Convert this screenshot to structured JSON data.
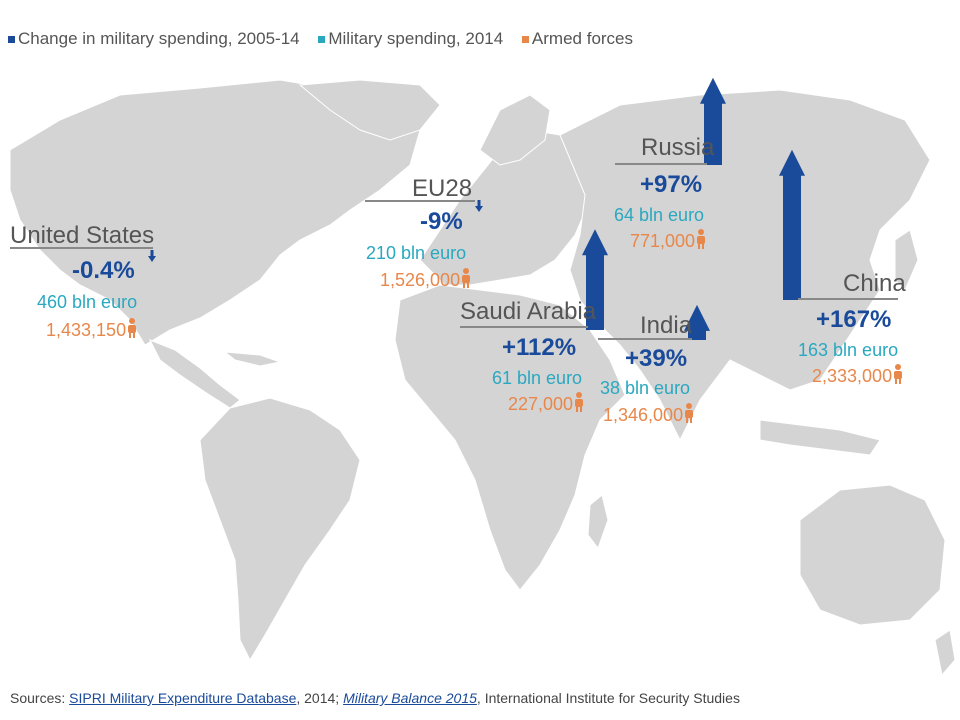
{
  "legend": {
    "items": [
      {
        "label": "Change in military spending, 2005-14",
        "color": "#1a4a9a"
      },
      {
        "label": "Military spending, 2014",
        "color": "#2aa8c0"
      },
      {
        "label": "Armed forces",
        "color": "#e8874a"
      }
    ]
  },
  "chart_data": {
    "type": "map",
    "series_labels": [
      "Change in military spending, 2005-14",
      "Military spending, 2014",
      "Armed forces"
    ],
    "countries": [
      {
        "name": "United States",
        "change": "-0.4%",
        "change_value": -0.4,
        "spending": "460 bln euro",
        "spending_value": 460,
        "forces": "1,433,150",
        "forces_value": 1433150
      },
      {
        "name": "EU28",
        "change": "-9%",
        "change_value": -9,
        "spending": "210 bln euro",
        "spending_value": 210,
        "forces": "1,526,000",
        "forces_value": 1526000
      },
      {
        "name": "Russia",
        "change": "+97%",
        "change_value": 97,
        "spending": "64 bln euro",
        "spending_value": 64,
        "forces": "771,000",
        "forces_value": 771000
      },
      {
        "name": "Saudi Arabia",
        "change": "+112%",
        "change_value": 112,
        "spending": "61 bln euro",
        "spending_value": 61,
        "forces": "227,000",
        "forces_value": 227000
      },
      {
        "name": "India",
        "change": "+39%",
        "change_value": 39,
        "spending": "38 bln euro",
        "spending_value": 38,
        "forces": "1,346,000",
        "forces_value": 1346000
      },
      {
        "name": "China",
        "change": "+167%",
        "change_value": 167,
        "spending": "163 bln euro",
        "spending_value": 163,
        "forces": "2,333,000",
        "forces_value": 2333000
      }
    ]
  },
  "sources": {
    "prefix": "Sources: ",
    "link1": "SIPRI Military Expenditure Database",
    "mid": ", 2014; ",
    "link2": "Military Balance 2015",
    "suffix": ", International Institute for Security Studies"
  },
  "colors": {
    "map_land": "#d4d4d4",
    "arrow": "#1a4a9a",
    "spending": "#2aa8c0",
    "forces": "#e8874a"
  }
}
